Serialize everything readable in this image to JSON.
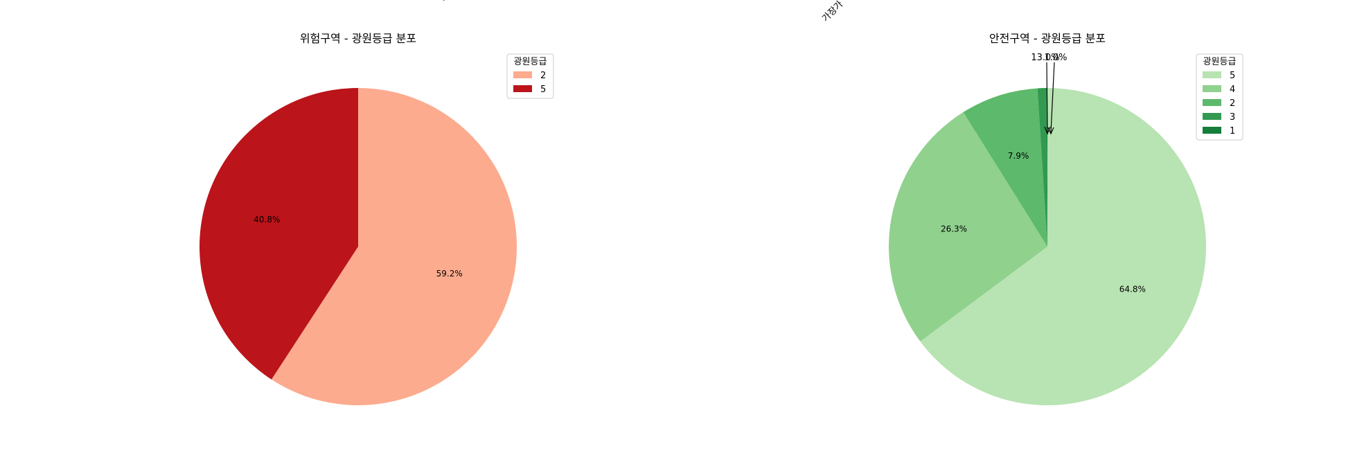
{
  "chart_data": [
    {
      "type": "pie",
      "title": "위험구역 - 광원등급 분포",
      "legend_title": "광원등급",
      "legend_position": "upper-right",
      "categories": [
        "2",
        "5"
      ],
      "values": [
        59.2,
        40.8
      ],
      "labels": [
        "59.2%",
        "40.8%"
      ],
      "colors": [
        "#fcab8f",
        "#bb141a"
      ]
    },
    {
      "type": "pie",
      "title": "안전구역 - 광원등급 분포",
      "legend_title": "광원등급",
      "legend_position": "upper-right",
      "categories": [
        "5",
        "4",
        "2",
        "3",
        "1"
      ],
      "values": [
        64.8,
        26.3,
        7.9,
        0.9,
        0.1
      ],
      "labels": [
        "64.8%",
        "26.3%",
        "7.9%",
        "",
        ""
      ],
      "colors": [
        "#b8e3b2",
        "#90d18d",
        "#5db96b",
        "#319a50",
        "#147e3a"
      ],
      "annotations": [
        "13.0%",
        "1.0%"
      ]
    }
  ]
}
